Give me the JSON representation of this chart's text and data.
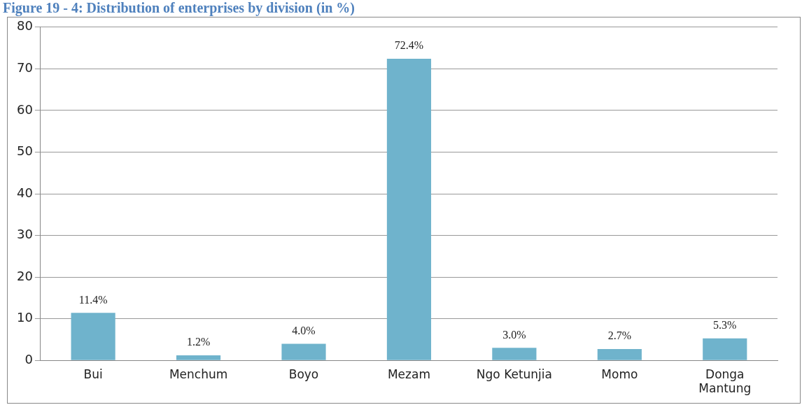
{
  "chart_data": {
    "type": "bar",
    "title": "Figure 19 - 4: Distribution of enterprises by division (in %)",
    "categories": [
      "Bui",
      "Menchum",
      "Boyo",
      "Mezam",
      "Ngo Ketunjia",
      "Momo",
      "Donga Mantung"
    ],
    "values": [
      11.4,
      1.2,
      4.0,
      72.4,
      3.0,
      2.7,
      5.3
    ],
    "value_labels": [
      "11.4%",
      "1.2%",
      "4.0%",
      "72.4%",
      "3.0%",
      "2.7%",
      "5.3%"
    ],
    "color": "#6fb3cc",
    "ylim": [
      0,
      80
    ],
    "yticks": [
      0,
      10,
      20,
      30,
      40,
      50,
      60,
      70,
      80
    ],
    "grid": "y",
    "legend": false
  }
}
